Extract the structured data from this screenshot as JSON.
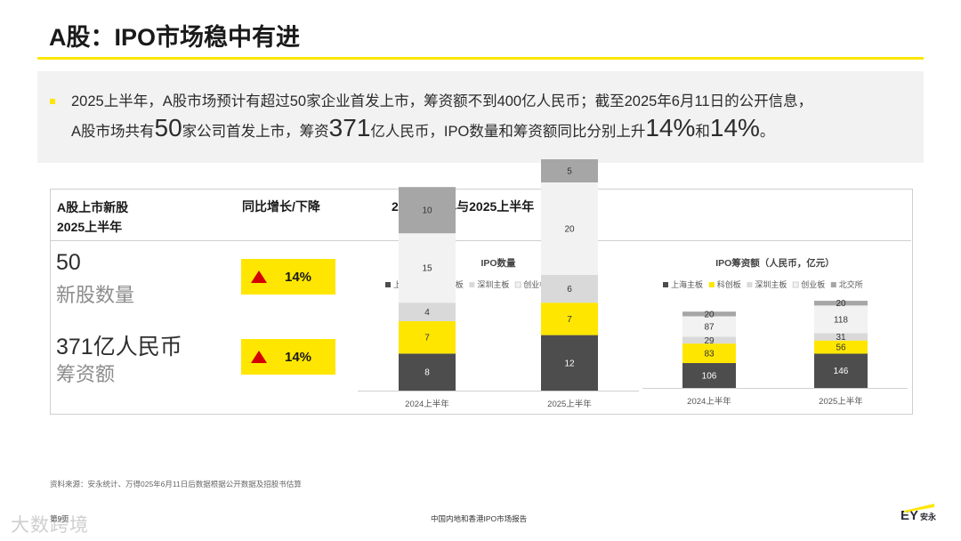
{
  "title": "A股：IPO市场稳中有进",
  "summary": {
    "line1": "2025上半年，A股市场预计有超过50家企业首发上市，筹资额不到400亿人民币；截至2025年6月11日的公开信息，",
    "line2_a": "A股市场共有",
    "line2_num1": "50",
    "line2_b": "家公司首发上市，筹资",
    "line2_num2": "371",
    "line2_c": "亿人民币，IPO数量和筹资额同比分别上升",
    "line2_num3": "14%",
    "line2_d": "和",
    "line2_num4": "14%",
    "line2_e": "。"
  },
  "table": {
    "col1_header_line1": "A股上市新股",
    "col1_header_line2": "2025上半年",
    "col2_header": "同比增长/下降",
    "col3_header": "2024上半年与2025上半年",
    "stats": [
      {
        "value": "50",
        "label": "新股数量",
        "change": "14%"
      },
      {
        "value": "371亿人民币",
        "label": "筹资额",
        "change": "14%"
      }
    ]
  },
  "chart_data": [
    {
      "type": "bar",
      "stacked": true,
      "title": "IPO数量",
      "categories": [
        "2024上半年",
        "2025上半年"
      ],
      "series": [
        {
          "name": "上海主板",
          "color": "#4d4d4d",
          "values": [
            8,
            12
          ]
        },
        {
          "name": "科创板",
          "color": "#ffe600",
          "values": [
            7,
            7
          ]
        },
        {
          "name": "深圳主板",
          "color": "#d9d9d9",
          "values": [
            4,
            6
          ]
        },
        {
          "name": "创业板",
          "color": "#f2f2f2",
          "values": [
            15,
            20
          ]
        },
        {
          "name": "北交所",
          "color": "#a6a6a6",
          "values": [
            10,
            5
          ]
        }
      ],
      "legend": "top"
    },
    {
      "type": "bar",
      "stacked": true,
      "title": "IPO筹资额（人民币，亿元）",
      "categories": [
        "2024上半年",
        "2025上半年"
      ],
      "series": [
        {
          "name": "上海主板",
          "color": "#4d4d4d",
          "values": [
            106,
            146
          ]
        },
        {
          "name": "科创板",
          "color": "#ffe600",
          "values": [
            83,
            56
          ]
        },
        {
          "name": "深圳主板",
          "color": "#d9d9d9",
          "values": [
            29,
            31
          ]
        },
        {
          "name": "创业板",
          "color": "#f2f2f2",
          "values": [
            87,
            118
          ]
        },
        {
          "name": "北交所",
          "color": "#a6a6a6",
          "values": [
            20,
            20
          ]
        }
      ],
      "legend": "top"
    }
  ],
  "footer": {
    "source": "资料来源：安永统计、万得025年6月11日后数据根据公开数据及招股书估算",
    "page": "第9页",
    "report": "中国内地和香港IPO市场报告",
    "watermark": "大数跨境",
    "logo": "EY",
    "logo_sub": "安永"
  },
  "colors": {
    "accent": "#ffe600",
    "up_arrow": "#d40000"
  }
}
